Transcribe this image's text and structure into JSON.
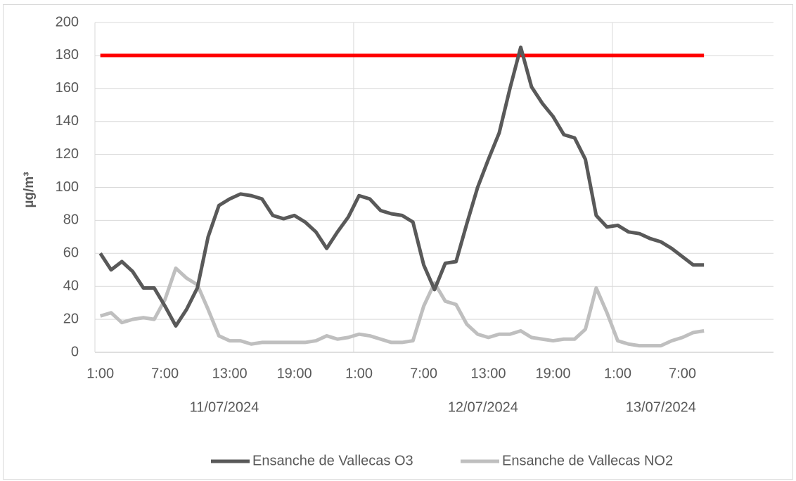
{
  "chart_data": {
    "type": "line",
    "y_label": "µg/m³",
    "categories": [
      "1:00",
      null,
      null,
      null,
      null,
      null,
      "7:00",
      null,
      null,
      null,
      null,
      null,
      "13:00",
      null,
      null,
      null,
      null,
      null,
      "19:00",
      null,
      null,
      null,
      null,
      null,
      "1:00",
      null,
      null,
      null,
      null,
      null,
      "7:00",
      null,
      null,
      null,
      null,
      null,
      "13:00",
      null,
      null,
      null,
      null,
      null,
      "19:00",
      null,
      null,
      null,
      null,
      null,
      "1:00",
      null,
      null,
      null,
      null,
      null,
      "7:00",
      null,
      null
    ],
    "dates": [
      "11/07/2024",
      null,
      null,
      null,
      null,
      null,
      null,
      null,
      null,
      null,
      null,
      null,
      null,
      null,
      null,
      null,
      null,
      null,
      null,
      null,
      null,
      null,
      null,
      null,
      "12/07/2024",
      null,
      null,
      null,
      null,
      null,
      null,
      null,
      null,
      null,
      null,
      null,
      null,
      null,
      null,
      null,
      null,
      null,
      null,
      null,
      null,
      null,
      null,
      null,
      "13/07/2024",
      null,
      null,
      null,
      null,
      null,
      null,
      null,
      null
    ],
    "series": [
      {
        "name": "Ensanche de Vallecas O3",
        "color": "#595959",
        "values": [
          60,
          50,
          55,
          49,
          39,
          39,
          28,
          16,
          26,
          39,
          70,
          89,
          93,
          96,
          95,
          93,
          83,
          81,
          83,
          79,
          73,
          63,
          73,
          82,
          95,
          93,
          86,
          84,
          83,
          79,
          53,
          38,
          54,
          55,
          78,
          100,
          117,
          133,
          160,
          185,
          161,
          151,
          143,
          132,
          130,
          117,
          83,
          76,
          77,
          73,
          72,
          69,
          67,
          63,
          58,
          53,
          53
        ]
      },
      {
        "name": "Ensanche de Vallecas NO2",
        "color": "#bfbfbf",
        "values": [
          22,
          24,
          18,
          20,
          21,
          20,
          32,
          51,
          45,
          41,
          26,
          10,
          7,
          7,
          5,
          6,
          6,
          6,
          6,
          6,
          7,
          10,
          8,
          9,
          11,
          10,
          8,
          6,
          6,
          7,
          28,
          42,
          31,
          29,
          17,
          11,
          9,
          11,
          11,
          13,
          9,
          8,
          7,
          8,
          8,
          14,
          39,
          24,
          7,
          5,
          4,
          4,
          4,
          7,
          9,
          12,
          13
        ]
      }
    ],
    "threshold": {
      "value": 180,
      "color": "#ff0000"
    },
    "ylim": [
      0,
      200
    ],
    "yticks": [
      0,
      20,
      40,
      60,
      80,
      100,
      120,
      140,
      160,
      180,
      200
    ],
    "grid": true,
    "legend": "bottom"
  }
}
